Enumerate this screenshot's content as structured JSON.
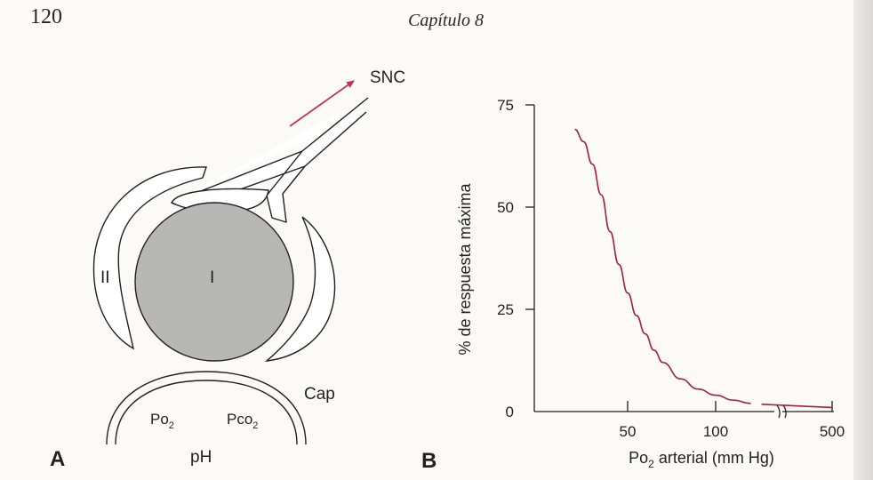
{
  "header": {
    "page_number": "120",
    "chapter": "Capítulo 8"
  },
  "panel_a": {
    "label": "A",
    "snc": "SNC",
    "cell_i": "I",
    "cell_ii": "II",
    "cap": "Cap",
    "po2_base": "Po",
    "po2_sub": "2",
    "pco2_base": "Pco",
    "pco2_sub": "2",
    "ph": "pH",
    "arrow_color": "#c8304f"
  },
  "panel_b": {
    "label": "B"
  },
  "chart_data": {
    "type": "line",
    "title": "",
    "xlabel_base": "Po",
    "xlabel_sub": "2",
    "xlabel_rest": " arterial (mm Hg)",
    "ylabel": "% de respuesta máxima",
    "x_ticks": [
      "50",
      "100",
      "500"
    ],
    "y_ticks": [
      "0",
      "25",
      "50",
      "75"
    ],
    "ylim": [
      0,
      75
    ],
    "x_axis_break": "between 125 and 500",
    "series_color": "#a3203f",
    "series": [
      {
        "x": [
          20,
          25,
          30,
          35,
          40,
          45,
          50,
          55,
          60,
          65,
          70,
          80,
          90,
          100,
          110,
          120,
          500
        ],
        "y": [
          69,
          66,
          60.5,
          53,
          44,
          36,
          29,
          23.5,
          19,
          15,
          12,
          8,
          5.5,
          4,
          2.8,
          2,
          1
        ]
      }
    ]
  }
}
